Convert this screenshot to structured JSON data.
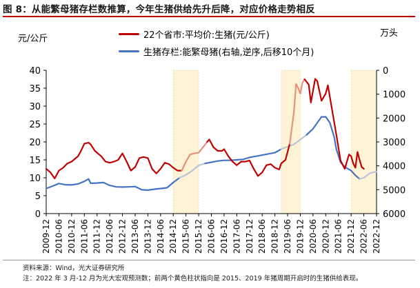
{
  "figure": {
    "title": "图 8：从能繁母猪存栏数推算，今年生猪供给先升后降，对应价格走势相反",
    "left_unit": "元/公斤",
    "right_unit": "万头",
    "source_note": "资料来源：Wind，光大证券研究所",
    "footnote": "注：2022 年 3 月-12 月为光大宏观预测数；前两个黄色柱状指向是 2015、2019 年猪周期开启时的生猪供给表现。"
  },
  "colors": {
    "price": "#c00000",
    "price_forecast": "#e8907a",
    "stock": "#4472c4",
    "stock_forecast": "#b8c4d6",
    "highlight": "#fff3d6"
  },
  "chart_data": {
    "type": "line",
    "title": "从能繁母猪存栏数推算，今年生猪供给先升后降，对应价格走势相反",
    "x_ticks": [
      "2009-12",
      "2010-06",
      "2010-12",
      "2011-06",
      "2011-12",
      "2012-06",
      "2012-12",
      "2013-06",
      "2013-12",
      "2014-06",
      "2014-12",
      "2015-06",
      "2015-12",
      "2016-06",
      "2016-12",
      "2017-06",
      "2017-12",
      "2018-06",
      "2018-12",
      "2019-06",
      "2019-12",
      "2020-06",
      "2020-12",
      "2021-06",
      "2021-12",
      "2022-06",
      "2022-12"
    ],
    "left_axis": {
      "label": "元/公斤",
      "range": [
        0,
        40
      ],
      "ticks": [
        0,
        5,
        10,
        15,
        20,
        25,
        30,
        35,
        40
      ]
    },
    "right_axis": {
      "label": "万头",
      "range": [
        6000,
        0
      ],
      "inverted": true,
      "ticks": [
        0,
        1000,
        2000,
        3000,
        4000,
        5000,
        6000
      ]
    },
    "highlight_bands": [
      {
        "from": "2014-12",
        "to": "2015-12"
      },
      {
        "from": "2019-03",
        "to": "2019-12"
      },
      {
        "from": "2021-12",
        "to": "2022-12"
      }
    ],
    "series": [
      {
        "name": "22个省市:平均价:生猪(元/公斤)",
        "axis": "left",
        "points": [
          [
            "2009-12",
            12.5
          ],
          [
            "2010-02",
            11.5
          ],
          [
            "2010-04",
            9.8
          ],
          [
            "2010-06",
            12.0
          ],
          [
            "2010-08",
            12.8
          ],
          [
            "2010-10",
            14.0
          ],
          [
            "2010-12",
            14.5
          ],
          [
            "2011-02",
            15.5
          ],
          [
            "2011-03",
            16.0
          ],
          [
            "2011-04",
            17.0
          ],
          [
            "2011-06",
            19.5
          ],
          [
            "2011-08",
            19.8
          ],
          [
            "2011-09",
            19.3
          ],
          [
            "2011-11",
            17.5
          ],
          [
            "2011-12",
            17.0
          ],
          [
            "2012-02",
            16.0
          ],
          [
            "2012-04",
            14.5
          ],
          [
            "2012-06",
            14.2
          ],
          [
            "2012-08",
            14.5
          ],
          [
            "2012-10",
            15.0
          ],
          [
            "2012-12",
            16.8
          ],
          [
            "2013-02",
            14.5
          ],
          [
            "2013-04",
            12.0
          ],
          [
            "2013-06",
            13.0
          ],
          [
            "2013-08",
            15.5
          ],
          [
            "2013-10",
            15.8
          ],
          [
            "2013-12",
            15.5
          ],
          [
            "2014-02",
            12.5
          ],
          [
            "2014-04",
            11.2
          ],
          [
            "2014-06",
            12.5
          ],
          [
            "2014-08",
            14.2
          ],
          [
            "2014-10",
            13.8
          ],
          [
            "2014-12",
            12.8
          ],
          [
            "2015-02",
            12.0
          ],
          [
            "2015-04",
            12.0
          ],
          [
            "2015-06",
            14.5
          ],
          [
            "2015-08",
            16.5
          ],
          [
            "2015-10",
            16.8
          ],
          [
            "2015-12",
            17.0
          ],
          [
            "2016-02",
            18.5
          ],
          [
            "2016-04",
            20.0
          ],
          [
            "2016-05",
            20.7
          ],
          [
            "2016-07",
            18.5
          ],
          [
            "2016-09",
            17.5
          ],
          [
            "2016-11",
            17.5
          ],
          [
            "2016-12",
            18.0
          ],
          [
            "2017-02",
            16.0
          ],
          [
            "2017-04",
            14.5
          ],
          [
            "2017-06",
            13.5
          ],
          [
            "2017-08",
            14.5
          ],
          [
            "2017-10",
            14.5
          ],
          [
            "2017-12",
            14.8
          ],
          [
            "2018-02",
            12.5
          ],
          [
            "2018-04",
            10.5
          ],
          [
            "2018-06",
            11.5
          ],
          [
            "2018-08",
            13.5
          ],
          [
            "2018-10",
            13.8
          ],
          [
            "2018-12",
            12.8
          ],
          [
            "2019-02",
            12.3
          ],
          [
            "2019-03",
            14.0
          ],
          [
            "2019-05",
            15.0
          ],
          [
            "2019-07",
            19.5
          ],
          [
            "2019-09",
            28.5
          ],
          [
            "2019-10",
            36.2
          ],
          [
            "2019-11",
            35.0
          ],
          [
            "2019-12",
            33.5
          ],
          [
            "2020-01",
            36.5
          ],
          [
            "2020-02",
            37.5
          ],
          [
            "2020-04",
            36.0
          ],
          [
            "2020-05",
            31.0
          ],
          [
            "2020-07",
            37.6
          ],
          [
            "2020-08",
            37.0
          ],
          [
            "2020-10",
            31.5
          ],
          [
            "2020-12",
            33.5
          ],
          [
            "2021-01",
            35.8
          ],
          [
            "2021-03",
            29.0
          ],
          [
            "2021-05",
            22.0
          ],
          [
            "2021-07",
            14.8
          ],
          [
            "2021-09",
            12.5
          ],
          [
            "2021-11",
            16.5
          ],
          [
            "2021-12",
            16.0
          ],
          [
            "2022-01",
            14.0
          ],
          [
            "2022-02",
            12.8
          ],
          [
            "2022-03",
            17.2
          ],
          [
            "2022-04",
            15.0
          ],
          [
            "2022-05",
            13.0
          ],
          [
            "2022-06",
            12.5
          ]
        ]
      },
      {
        "name": "生猪存栏:能繁母猪(右轴,逆序,后移10个月)",
        "axis": "right",
        "points": [
          [
            "2009-12",
            4950
          ],
          [
            "2010-03",
            4850
          ],
          [
            "2010-06",
            4740
          ],
          [
            "2010-09",
            4790
          ],
          [
            "2010-12",
            4800
          ],
          [
            "2011-03",
            4760
          ],
          [
            "2011-06",
            4650
          ],
          [
            "2011-08",
            4550
          ],
          [
            "2011-09",
            4730
          ],
          [
            "2011-12",
            4720
          ],
          [
            "2012-03",
            4700
          ],
          [
            "2012-06",
            4820
          ],
          [
            "2012-09",
            4880
          ],
          [
            "2012-12",
            4890
          ],
          [
            "2013-03",
            4880
          ],
          [
            "2013-06",
            4870
          ],
          [
            "2013-09",
            5000
          ],
          [
            "2013-12",
            5020
          ],
          [
            "2014-03",
            4980
          ],
          [
            "2014-06",
            4950
          ],
          [
            "2014-09",
            4920
          ],
          [
            "2014-12",
            4700
          ],
          [
            "2015-03",
            4500
          ],
          [
            "2015-06",
            4380
          ],
          [
            "2015-09",
            4200
          ],
          [
            "2015-12",
            3980
          ],
          [
            "2016-03",
            3900
          ],
          [
            "2016-06",
            3850
          ],
          [
            "2016-09",
            3800
          ],
          [
            "2016-12",
            3770
          ],
          [
            "2017-03",
            3770
          ],
          [
            "2017-06",
            3750
          ],
          [
            "2017-09",
            3730
          ],
          [
            "2017-12",
            3650
          ],
          [
            "2018-03",
            3600
          ],
          [
            "2018-06",
            3550
          ],
          [
            "2018-09",
            3500
          ],
          [
            "2018-12",
            3450
          ],
          [
            "2019-01",
            3400
          ],
          [
            "2019-03",
            3300
          ],
          [
            "2019-06",
            3200
          ],
          [
            "2019-09",
            3100
          ],
          [
            "2019-12",
            2900
          ],
          [
            "2020-03",
            2700
          ],
          [
            "2020-06",
            2450
          ],
          [
            "2020-08",
            2200
          ],
          [
            "2020-10",
            1950
          ],
          [
            "2020-12",
            1950
          ],
          [
            "2021-02",
            2200
          ],
          [
            "2021-04",
            2800
          ],
          [
            "2021-05",
            3300
          ],
          [
            "2021-07",
            3850
          ],
          [
            "2021-09",
            4050
          ],
          [
            "2021-12",
            4200
          ],
          [
            "2022-02",
            4400
          ],
          [
            "2022-04",
            4550
          ],
          [
            "2022-06",
            4500
          ],
          [
            "2022-09",
            4300
          ],
          [
            "2022-12",
            4250
          ]
        ]
      }
    ],
    "forecast_style": {
      "price": {
        "from": "2015-03",
        "to": "2016-02"
      },
      "price_2019": {
        "from": "2019-06",
        "to": "2020-01"
      },
      "stock": {
        "from": "2015-03",
        "to": "2015-12"
      },
      "stock_2019": {
        "from": "2019-03",
        "to": "2019-12"
      },
      "stock_2022": {
        "from": "2022-03",
        "to": "2022-12"
      }
    }
  }
}
